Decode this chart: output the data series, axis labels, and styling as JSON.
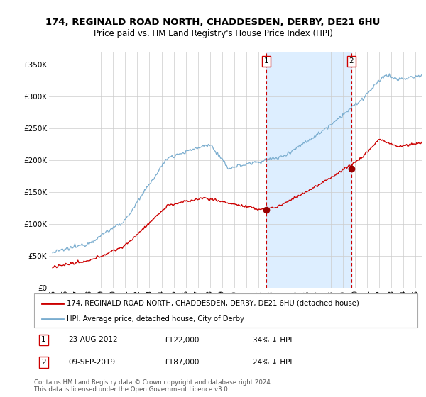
{
  "title": "174, REGINALD ROAD NORTH, CHADDESDEN, DERBY, DE21 6HU",
  "subtitle": "Price paid vs. HM Land Registry's House Price Index (HPI)",
  "ylabel_ticks": [
    "£0",
    "£50K",
    "£100K",
    "£150K",
    "£200K",
    "£250K",
    "£300K",
    "£350K"
  ],
  "ytick_values": [
    0,
    50000,
    100000,
    150000,
    200000,
    250000,
    300000,
    350000
  ],
  "ylim": [
    0,
    370000
  ],
  "xlim_left": 1994.7,
  "xlim_right": 2025.5,
  "sale1_x": 2012.65,
  "sale1_y": 122000,
  "sale1_date": "23-AUG-2012",
  "sale1_pct": "34% ↓ HPI",
  "sale2_x": 2019.69,
  "sale2_y": 187000,
  "sale2_date": "09-SEP-2019",
  "sale2_pct": "24% ↓ HPI",
  "legend_line1": "174, REGINALD ROAD NORTH, CHADDESDEN, DERBY, DE21 6HU (detached house)",
  "legend_line2": "HPI: Average price, detached house, City of Derby",
  "footer": "Contains HM Land Registry data © Crown copyright and database right 2024.\nThis data is licensed under the Open Government Licence v3.0.",
  "property_color": "#cc0000",
  "hpi_color": "#7aadcf",
  "shade_color": "#ddeeff",
  "vline_color": "#cc0000",
  "background_color": "#ffffff",
  "grid_color": "#cccccc",
  "sale_marker_color": "#990000"
}
